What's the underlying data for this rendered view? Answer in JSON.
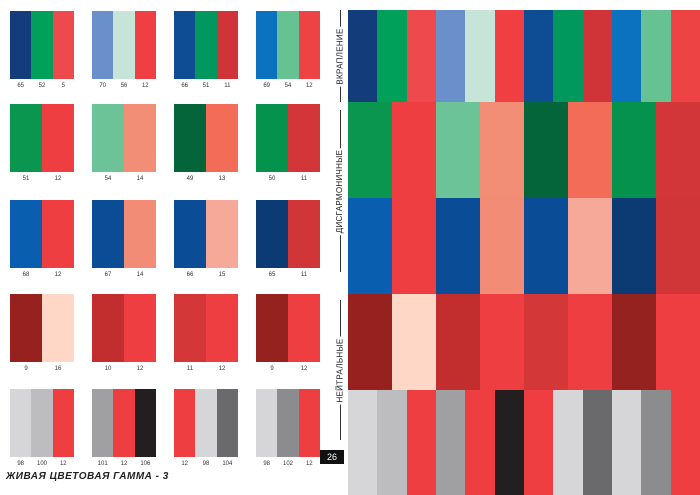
{
  "grid": {
    "rows": [
      [
        {
          "colors": [
            "#123d7a",
            "#00a05a",
            "#ee4a4e"
          ],
          "nums": [
            "65",
            "52",
            "5"
          ]
        },
        {
          "colors": [
            "#6b8fcb",
            "#c7e4d8",
            "#ef3f42"
          ],
          "nums": [
            "70",
            "56",
            "12"
          ]
        },
        {
          "colors": [
            "#0e4c94",
            "#00985c",
            "#d03338"
          ],
          "nums": [
            "66",
            "51",
            "11"
          ]
        },
        {
          "colors": [
            "#0a72be",
            "#66c293",
            "#ee4345"
          ],
          "nums": [
            "69",
            "54",
            "12"
          ]
        }
      ],
      [
        {
          "colors": [
            "#0b9650",
            "#ef3e42"
          ],
          "nums": [
            "51",
            "12"
          ]
        },
        {
          "colors": [
            "#6cc397",
            "#f28e75"
          ],
          "nums": [
            "54",
            "14"
          ]
        },
        {
          "colors": [
            "#04643a",
            "#f26c57"
          ],
          "nums": [
            "49",
            "13"
          ]
        },
        {
          "colors": [
            "#04924d",
            "#d33638"
          ],
          "nums": [
            "50",
            "11"
          ]
        }
      ],
      [
        {
          "colors": [
            "#095eaf",
            "#ee3e42"
          ],
          "nums": [
            "68",
            "12"
          ]
        },
        {
          "colors": [
            "#0a4d96",
            "#f28c77"
          ],
          "nums": [
            "67",
            "14"
          ]
        },
        {
          "colors": [
            "#0a4d96",
            "#f6a998"
          ],
          "nums": [
            "66",
            "15"
          ]
        },
        {
          "colors": [
            "#0c3b74",
            "#d03538"
          ],
          "nums": [
            "65",
            "11"
          ]
        }
      ],
      [
        {
          "colors": [
            "#96211f",
            "#fed7c7"
          ],
          "nums": [
            "9",
            "16"
          ]
        },
        {
          "colors": [
            "#c22d2d",
            "#ee3e42"
          ],
          "nums": [
            "10",
            "12"
          ]
        },
        {
          "colors": [
            "#d33737",
            "#ee3e42"
          ],
          "nums": [
            "11",
            "12"
          ]
        },
        {
          "colors": [
            "#96221f",
            "#ee3e42"
          ],
          "nums": [
            "9",
            "12"
          ]
        }
      ],
      [
        {
          "colors": [
            "#d6d6d8",
            "#bdbdbf",
            "#ee3e42"
          ],
          "nums": [
            "98",
            "100",
            "12"
          ]
        },
        {
          "colors": [
            "#a0a0a2",
            "#ee3e42",
            "#231f20"
          ],
          "nums": [
            "101",
            "12",
            "106"
          ]
        },
        {
          "colors": [
            "#ee3e42",
            "#d6d6d8",
            "#6a6a6c"
          ],
          "nums": [
            "12",
            "98",
            "104"
          ]
        },
        {
          "colors": [
            "#d6d6d8",
            "#8c8c8e",
            "#ee3e42"
          ],
          "nums": [
            "98",
            "102",
            "12"
          ]
        }
      ]
    ]
  },
  "labels": {
    "vkrapl": "вкрапление",
    "disgarm": "дисгармоничные",
    "neutral": "нейтральные"
  },
  "bands": {
    "b1": [
      "#123d7a",
      "#00a05a",
      "#ee4a4e",
      "#6b8fcb",
      "#c7e4d8",
      "#ef3f42",
      "#0e4c94",
      "#00985c",
      "#d03338",
      "#0a72be",
      "#66c293",
      "#ee4345"
    ],
    "b2": [
      "#0b9650",
      "#ef3e42",
      "#6cc397",
      "#f28e75",
      "#04643a",
      "#f26c57",
      "#04924d",
      "#d33638"
    ],
    "b3": [
      "#095eaf",
      "#ee3e42",
      "#0a4d96",
      "#f28c77",
      "#0a4d96",
      "#f6a998",
      "#0c3b74",
      "#d03538"
    ],
    "b4": [
      "#96211f",
      "#fed7c7",
      "#c22d2d",
      "#ee3e42",
      "#d33737",
      "#ee3e42",
      "#96221f",
      "#ee3e42"
    ],
    "b5": [
      "#d6d6d8",
      "#bdbdbf",
      "#ee3e42",
      "#a0a0a2",
      "#ee3e42",
      "#231f20",
      "#ee3e42",
      "#d6d6d8",
      "#6a6a6c",
      "#d6d6d8",
      "#8c8c8e",
      "#ee3e42"
    ]
  },
  "footer": {
    "title": "ЖИВАЯ ЦВЕТОВАЯ ГАММА - 3",
    "page": "26"
  }
}
